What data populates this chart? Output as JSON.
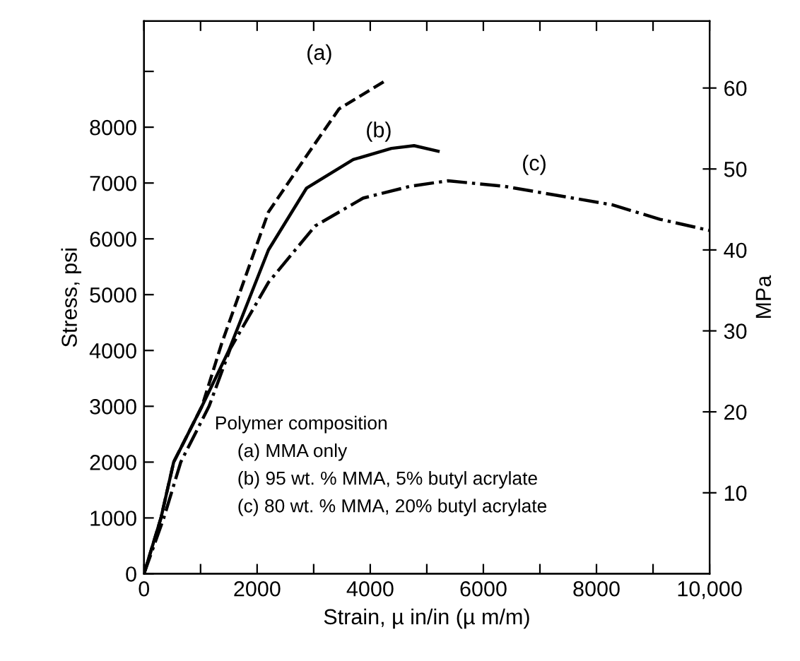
{
  "chart_data": {
    "type": "line",
    "xlabel": "Strain, µ in/in (µ m/m)",
    "ylabel": "Stress, psi",
    "y2label": "MPa",
    "xlim": [
      0,
      10000
    ],
    "ylim": [
      0,
      9900
    ],
    "y2lim": [
      0,
      68.26
    ],
    "xticks": [
      0,
      {
        "value": 1000,
        "label": null
      },
      2000,
      {
        "value": 3000,
        "label": null
      },
      4000,
      {
        "value": 5000,
        "label": null
      },
      6000,
      {
        "value": 7000,
        "label": null
      },
      8000,
      {
        "value": 9000,
        "label": null
      },
      {
        "value": 10000,
        "label": "10,000"
      }
    ],
    "yticks": [
      0,
      1000,
      2000,
      3000,
      4000,
      5000,
      6000,
      7000,
      8000,
      {
        "value": 9000,
        "label": null
      }
    ],
    "y2ticks": [
      10,
      20,
      30,
      40,
      50,
      60
    ],
    "grid": false,
    "legend": false,
    "marker": "none",
    "series": [
      {
        "color": "#000000",
        "line_style": "dashed",
        "x": [
          0,
          300,
          525,
          1025,
          1375,
          2200,
          2875,
          3450,
          4280
        ],
        "values": [
          0,
          1000,
          2000,
          3000,
          4130,
          6480,
          7490,
          8330,
          8840
        ]
      },
      {
        "color": "#000000",
        "line_style": "solid",
        "x": [
          0,
          300,
          525,
          1025,
          1500,
          2200,
          2875,
          3700,
          4375,
          4775,
          5200
        ],
        "values": [
          0,
          1000,
          2000,
          3000,
          4000,
          5800,
          6910,
          7420,
          7620,
          7670,
          7570
        ]
      },
      {
        "color": "#000000",
        "line_style": "dashdot",
        "x": [
          0,
          350,
          650,
          1150,
          1525,
          2200,
          3025,
          3875,
          4700,
          5375,
          6375,
          7125,
          8275,
          9125,
          10000
        ],
        "values": [
          0,
          1000,
          2000,
          3000,
          4030,
          5220,
          6230,
          6730,
          6940,
          7040,
          6940,
          6810,
          6610,
          6350,
          6150
        ]
      }
    ],
    "annotations": [
      "(a)",
      "(b)",
      "(c)",
      "Polymer composition",
      "(a) MMA only",
      "(b) 95 wt. % MMA, 5% butyl acrylate",
      "(c) 80 wt. % MMA, 20% butyl acrylate"
    ]
  }
}
